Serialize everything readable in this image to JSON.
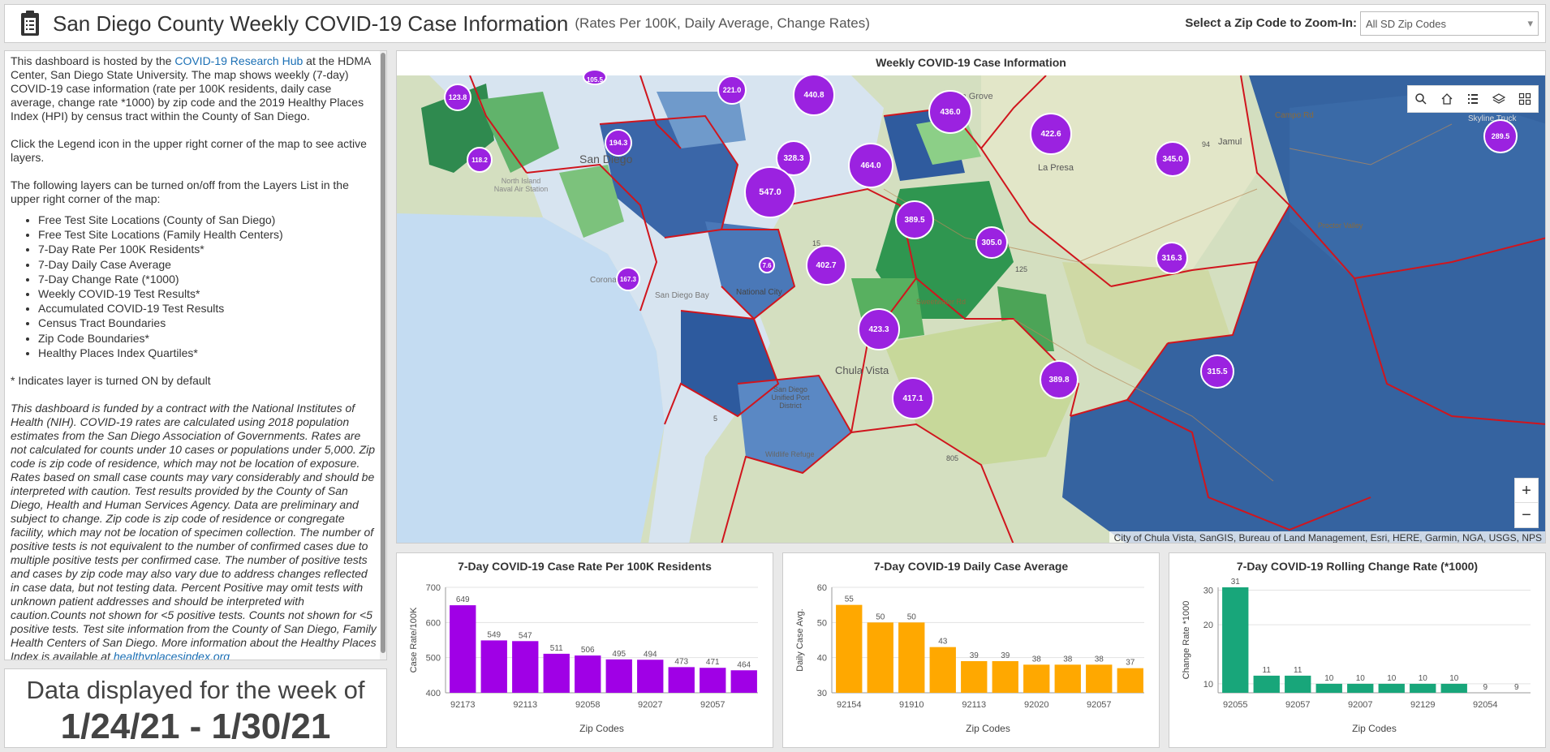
{
  "header": {
    "title": "San Diego County Weekly COVID-19 Case Information",
    "subtitle": "(Rates Per 100K, Daily Average, Change Rates)",
    "zip_label": "Select a Zip Code to Zoom-In:",
    "zip_select_value": "All SD Zip Codes",
    "chevron_glyph": "▾"
  },
  "sidebar": {
    "intro_before_link": "This dashboard is hosted by the ",
    "intro_link": "COVID-19 Research Hub",
    "intro_after_link": " at the HDMA Center, San Diego State University. The map shows weekly (7-day) COVID-19 case information (rate per 100K residents, daily case average, change rate *1000) by zip code and the 2019 Healthy Places Index (HPI) by census tract within the County of San Diego.",
    "legend_note": "Click the Legend icon in the upper right corner of the map to see active layers.",
    "layers_intro": "The following layers can be turned on/off from the Layers List in the upper right corner of the map:",
    "layers": [
      "Free Test Site Locations (County of San Diego)",
      "Free Test Site Locations (Family Health Centers)",
      "7-Day Rate Per 100K Residents*",
      "7-Day Daily Case Average",
      "7-Day Change Rate (*1000)",
      "Weekly COVID-19 Test Results*",
      "Accumulated COVID-19 Test Results",
      "Census Tract Boundaries",
      "Zip Code Boundaries*",
      "Healthy Places Index Quartiles*"
    ],
    "on_note": "* Indicates layer is turned ON by default",
    "funding": "This dashboard is funded by a contract with the National Institutes of Health (NIH). COVID-19 rates are calculated using 2018 population estimates from the San Diego Association of Governments. Rates are not calculated for counts under 10 cases or populations under 5,000. Zip code is zip code of residence, which may not be location of exposure. Rates based on small case counts may vary considerably and should be interpreted with caution. Test results provided by the County of San Diego, Health and Human Services Agency. Data are preliminary and subject to change. Zip code is zip code of residence or congregate facility, which may not be location of specimen collection. The number of positive tests is not equivalent to the number of confirmed cases due to multiple positive tests per confirmed case. The number of positive tests and cases by zip code may also vary due to address changes reflected in case data, but not testing data. Percent Positive may omit tests with unknown patient addresses and should be interpreted with caution.Counts not shown for <5 positive tests. Counts not shown for <5 positive tests. Test site information from the County of San Diego, Family Health Centers of San Diego. More information about the Healthy Places Index is available at ",
    "funding_link": "healthyplacesindex.org"
  },
  "week": {
    "line1": "Data displayed for the week of",
    "line2": "1/24/21 - 1/30/21"
  },
  "map": {
    "title": "Weekly COVID-19 Case Information",
    "attribution": "City of Chula Vista, SanGIS, Bureau of Land Management, Esri, HERE, Garmin, NGA, USGS, NPS",
    "zoom_in": "+",
    "zoom_out": "−",
    "place_labels": [
      "San Diego",
      "North Island Naval Air Station",
      "Coronado",
      "San Diego Bay",
      "National City",
      "Chula Vista",
      "Lemon Grove",
      "La Presa",
      "Jamul",
      "Campo Rd",
      "Skyline Truck",
      "94",
      "125",
      "Sweetwater Rd",
      "Proctor Valley",
      "San Diego Unified Port District",
      "Wildlife Refuge",
      "15",
      "5",
      "805"
    ],
    "markers": [
      "123.8",
      "105.5",
      "221.0",
      "440.8",
      "436.0",
      "422.6",
      "289.5",
      "118.2",
      "194.3",
      "328.3",
      "464.0",
      "345.0",
      "547.0",
      "7.6",
      "389.5",
      "305.0",
      "316.3",
      "167.3",
      "402.7",
      "423.3",
      "389.8",
      "315.5",
      "417.1"
    ]
  },
  "colors": {
    "bar_purple": "#a000e6",
    "bar_orange": "#ffa800",
    "bar_green": "#18a67a",
    "marker_fill": "#9b22e0",
    "zip_border": "#d0151d"
  },
  "chart_data": [
    {
      "type": "bar",
      "title": "7-Day COVID-19 Case Rate Per 100K Residents",
      "xlabel": "Zip Codes",
      "ylabel": "Case Rate/100K",
      "ylim": [
        400,
        700
      ],
      "yticks": [
        400,
        500,
        600,
        700
      ],
      "xtick_labels": [
        "92173",
        "92113",
        "92058",
        "92027",
        "92057"
      ],
      "values": [
        649,
        549,
        547,
        511,
        506,
        495,
        494,
        473,
        471,
        464
      ]
    },
    {
      "type": "bar",
      "title": "7-Day COVID-19 Daily Case Average",
      "xlabel": "Zip Codes",
      "ylabel": "Daily Case Avg.",
      "ylim": [
        30,
        60
      ],
      "yticks": [
        30,
        40,
        50,
        60
      ],
      "xtick_labels": [
        "92154",
        "91910",
        "92113",
        "92020",
        "92057"
      ],
      "values": [
        55,
        50,
        50,
        43,
        39,
        39,
        38,
        38,
        38,
        37
      ]
    },
    {
      "type": "bar",
      "title": "7-Day COVID-19 Rolling Change Rate (*1000)",
      "xlabel": "Zip Codes",
      "ylabel": "Change Rate *1000",
      "ylim": [
        9,
        31
      ],
      "yticks": [
        10,
        20,
        30
      ],
      "log_scale": true,
      "xtick_labels": [
        "92055",
        "92057",
        "92007",
        "92129",
        "92054"
      ],
      "values": [
        31,
        11,
        11,
        10,
        10,
        10,
        10,
        10,
        9,
        9
      ]
    }
  ]
}
